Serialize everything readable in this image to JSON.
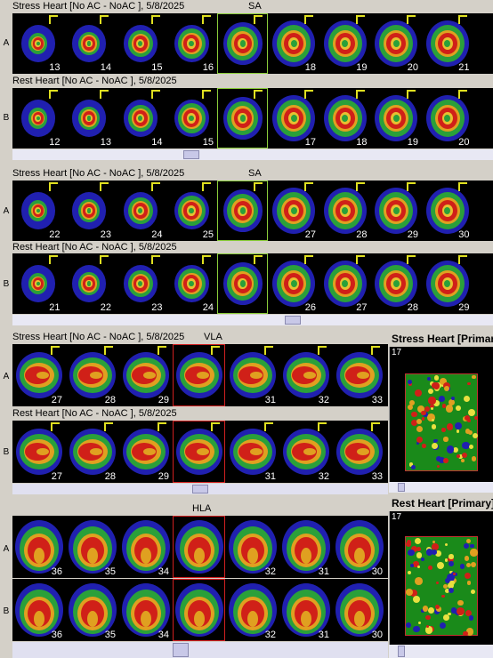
{
  "sections": [
    {
      "id": "sa1",
      "top": 0,
      "strip_left": 14,
      "view_label": "SA",
      "rows": [
        {
          "label": "A",
          "header": "Stress Heart [No AC - NoAC ], 5/8/2025",
          "numbers": [
            "13",
            "14",
            "15",
            "16",
            "",
            "18",
            "19",
            "20",
            "21"
          ]
        },
        {
          "label": "B",
          "header": "Rest Heart [No AC - NoAC ], 5/8/2025",
          "numbers": [
            "12",
            "13",
            "14",
            "15",
            "",
            "17",
            "18",
            "19",
            "20"
          ]
        }
      ]
    },
    {
      "id": "sa2",
      "view_label": "SA",
      "rows": [
        {
          "label": "A",
          "header": "Stress Heart [No AC - NoAC ], 5/8/2025",
          "numbers": [
            "22",
            "23",
            "24",
            "25",
            "",
            "27",
            "28",
            "29",
            "30"
          ]
        },
        {
          "label": "B",
          "header": "Rest Heart [No AC - NoAC ], 5/8/2025",
          "numbers": [
            "21",
            "22",
            "23",
            "24",
            "",
            "26",
            "27",
            "28",
            "29"
          ]
        }
      ]
    },
    {
      "id": "vla",
      "view_label": "VLA",
      "rows": [
        {
          "label": "A",
          "header": "Stress Heart [No AC - NoAC ], 5/8/2025",
          "numbers": [
            "27",
            "28",
            "29",
            "",
            "31",
            "32",
            "33"
          ]
        },
        {
          "label": "B",
          "header": "Rest Heart [No AC - NoAC ], 5/8/2025",
          "numbers": [
            "27",
            "28",
            "29",
            "",
            "31",
            "32",
            "33"
          ]
        }
      ]
    },
    {
      "id": "hla",
      "view_label": "HLA",
      "rows": [
        {
          "label": "A",
          "header": "",
          "numbers": [
            "36",
            "35",
            "34",
            "",
            "32",
            "31",
            "30"
          ]
        },
        {
          "label": "B",
          "header": "",
          "numbers": [
            "36",
            "35",
            "34",
            "",
            "32",
            "31",
            "30"
          ]
        }
      ]
    }
  ],
  "panels": [
    {
      "title": "Stress Heart [Primary]",
      "frame": "17"
    },
    {
      "title": "Rest Heart [Primary]",
      "frame": "17"
    }
  ],
  "colors": {
    "selected_sa": "#8acd3a",
    "selected_vla": "#d02020",
    "marker": "#e0e020"
  }
}
